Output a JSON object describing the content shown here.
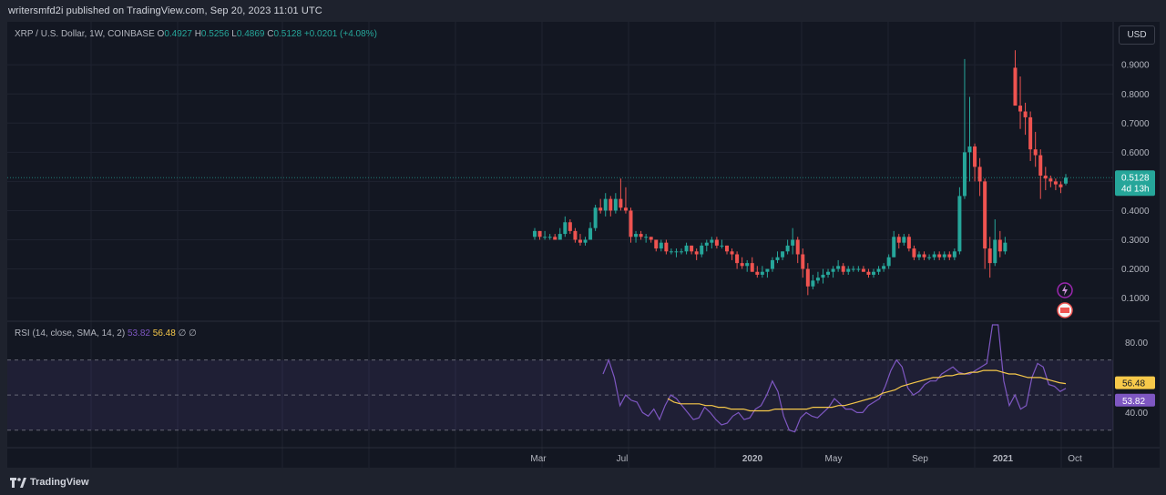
{
  "header": {
    "published": "writersmfd2i published on TradingView.com, Sep 20, 2023 11:01 UTC"
  },
  "legend": {
    "symbol": "XRP / U.S. Dollar, 1W, COINBASE",
    "o_label": "O",
    "o": "0.4927",
    "h_label": "H",
    "h": "0.5256",
    "l_label": "L",
    "l": "0.4869",
    "c_label": "C",
    "c": "0.5128",
    "change": "+0.0201 (+4.08%)"
  },
  "currency_button": "USD",
  "price_axis": {
    "ticks": [
      "0.9000",
      "0.8000",
      "0.7000",
      "0.6000",
      "0.5000",
      "0.4000",
      "0.3000",
      "0.2000",
      "0.1000"
    ],
    "last_price": "0.5128",
    "countdown": "4d 13h"
  },
  "rsi_legend": {
    "label": "RSI (14, close, SMA, 14, 2)",
    "rsi_value": "53.82",
    "sma_value": "56.48",
    "na1": "∅",
    "na2": "∅"
  },
  "rsi_axis": {
    "ticks": [
      "80.00",
      "40.00"
    ],
    "sma_badge": "56.48",
    "rsi_badge": "53.82"
  },
  "time_axis": {
    "labels": [
      "Mar",
      "Jul",
      "2020",
      "May",
      "Sep",
      "2021",
      "Oct"
    ]
  },
  "footer": {
    "brand": "TradingView"
  },
  "colors": {
    "up": "#26a69a",
    "down": "#ef5350",
    "rsi": "#7e57c2",
    "rsi_sma": "#f7c94a",
    "background": "#131722"
  },
  "chart_data": [
    {
      "type": "candlestick",
      "title": "XRP / U.S. Dollar, 1W, COINBASE",
      "ylim": [
        0.03,
        0.96
      ],
      "ohlc": [
        [
          0.31,
          0.34,
          0.3,
          0.33
        ],
        [
          0.33,
          0.33,
          0.3,
          0.31
        ],
        [
          0.31,
          0.33,
          0.3,
          0.31
        ],
        [
          0.31,
          0.32,
          0.3,
          0.31
        ],
        [
          0.31,
          0.32,
          0.3,
          0.3
        ],
        [
          0.3,
          0.34,
          0.3,
          0.32
        ],
        [
          0.32,
          0.38,
          0.31,
          0.36
        ],
        [
          0.36,
          0.37,
          0.32,
          0.33
        ],
        [
          0.33,
          0.34,
          0.29,
          0.3
        ],
        [
          0.3,
          0.32,
          0.28,
          0.29
        ],
        [
          0.29,
          0.31,
          0.28,
          0.3
        ],
        [
          0.3,
          0.36,
          0.3,
          0.34
        ],
        [
          0.34,
          0.42,
          0.33,
          0.41
        ],
        [
          0.41,
          0.44,
          0.39,
          0.4
        ],
        [
          0.4,
          0.46,
          0.38,
          0.44
        ],
        [
          0.44,
          0.45,
          0.38,
          0.4
        ],
        [
          0.4,
          0.46,
          0.39,
          0.44
        ],
        [
          0.44,
          0.51,
          0.4,
          0.41
        ],
        [
          0.41,
          0.48,
          0.39,
          0.4
        ],
        [
          0.4,
          0.41,
          0.29,
          0.31
        ],
        [
          0.31,
          0.33,
          0.29,
          0.32
        ],
        [
          0.32,
          0.33,
          0.3,
          0.31
        ],
        [
          0.31,
          0.32,
          0.29,
          0.31
        ],
        [
          0.31,
          0.31,
          0.29,
          0.3
        ],
        [
          0.3,
          0.3,
          0.26,
          0.27
        ],
        [
          0.27,
          0.3,
          0.26,
          0.29
        ],
        [
          0.29,
          0.3,
          0.25,
          0.26
        ],
        [
          0.26,
          0.27,
          0.25,
          0.26
        ],
        [
          0.26,
          0.27,
          0.24,
          0.26
        ],
        [
          0.26,
          0.27,
          0.25,
          0.26
        ],
        [
          0.26,
          0.29,
          0.25,
          0.28
        ],
        [
          0.28,
          0.28,
          0.25,
          0.26
        ],
        [
          0.26,
          0.27,
          0.23,
          0.25
        ],
        [
          0.25,
          0.29,
          0.24,
          0.28
        ],
        [
          0.28,
          0.3,
          0.26,
          0.29
        ],
        [
          0.29,
          0.31,
          0.27,
          0.3
        ],
        [
          0.3,
          0.31,
          0.27,
          0.28
        ],
        [
          0.28,
          0.3,
          0.27,
          0.28
        ],
        [
          0.28,
          0.28,
          0.25,
          0.26
        ],
        [
          0.26,
          0.27,
          0.23,
          0.25
        ],
        [
          0.25,
          0.26,
          0.2,
          0.22
        ],
        [
          0.22,
          0.24,
          0.2,
          0.21
        ],
        [
          0.21,
          0.23,
          0.19,
          0.22
        ],
        [
          0.22,
          0.24,
          0.19,
          0.19
        ],
        [
          0.19,
          0.21,
          0.17,
          0.18
        ],
        [
          0.18,
          0.21,
          0.17,
          0.19
        ],
        [
          0.19,
          0.2,
          0.17,
          0.2
        ],
        [
          0.2,
          0.24,
          0.19,
          0.23
        ],
        [
          0.23,
          0.26,
          0.22,
          0.24
        ],
        [
          0.24,
          0.26,
          0.23,
          0.26
        ],
        [
          0.26,
          0.3,
          0.25,
          0.28
        ],
        [
          0.28,
          0.34,
          0.25,
          0.3
        ],
        [
          0.3,
          0.31,
          0.22,
          0.25
        ],
        [
          0.25,
          0.27,
          0.17,
          0.2
        ],
        [
          0.2,
          0.22,
          0.11,
          0.14
        ],
        [
          0.14,
          0.18,
          0.13,
          0.16
        ],
        [
          0.16,
          0.19,
          0.15,
          0.17
        ],
        [
          0.17,
          0.2,
          0.15,
          0.18
        ],
        [
          0.18,
          0.2,
          0.17,
          0.19
        ],
        [
          0.19,
          0.21,
          0.17,
          0.2
        ],
        [
          0.2,
          0.23,
          0.19,
          0.21
        ],
        [
          0.21,
          0.22,
          0.18,
          0.19
        ],
        [
          0.19,
          0.21,
          0.18,
          0.2
        ],
        [
          0.2,
          0.21,
          0.19,
          0.2
        ],
        [
          0.2,
          0.21,
          0.19,
          0.2
        ],
        [
          0.2,
          0.21,
          0.19,
          0.19
        ],
        [
          0.19,
          0.2,
          0.17,
          0.18
        ],
        [
          0.18,
          0.2,
          0.17,
          0.19
        ],
        [
          0.19,
          0.21,
          0.18,
          0.2
        ],
        [
          0.2,
          0.22,
          0.19,
          0.21
        ],
        [
          0.21,
          0.25,
          0.2,
          0.24
        ],
        [
          0.24,
          0.33,
          0.24,
          0.31
        ],
        [
          0.31,
          0.32,
          0.27,
          0.29
        ],
        [
          0.29,
          0.32,
          0.28,
          0.31
        ],
        [
          0.31,
          0.32,
          0.26,
          0.27
        ],
        [
          0.27,
          0.28,
          0.23,
          0.24
        ],
        [
          0.24,
          0.26,
          0.23,
          0.25
        ],
        [
          0.25,
          0.26,
          0.23,
          0.24
        ],
        [
          0.24,
          0.25,
          0.23,
          0.24
        ],
        [
          0.24,
          0.26,
          0.23,
          0.25
        ],
        [
          0.25,
          0.26,
          0.23,
          0.24
        ],
        [
          0.24,
          0.26,
          0.23,
          0.25
        ],
        [
          0.25,
          0.26,
          0.23,
          0.24
        ],
        [
          0.24,
          0.27,
          0.23,
          0.26
        ],
        [
          0.26,
          0.48,
          0.25,
          0.45
        ],
        [
          0.45,
          0.92,
          0.44,
          0.6
        ],
        [
          0.6,
          0.79,
          0.5,
          0.62
        ],
        [
          0.62,
          0.63,
          0.5,
          0.55
        ],
        [
          0.55,
          0.58,
          0.45,
          0.5
        ],
        [
          0.5,
          0.51,
          0.2,
          0.27
        ],
        [
          0.27,
          0.31,
          0.17,
          0.22
        ],
        [
          0.22,
          0.37,
          0.21,
          0.3
        ],
        [
          0.3,
          0.33,
          0.24,
          0.26
        ],
        [
          0.26,
          0.31,
          0.25,
          0.29
        ],
        null,
        [
          0.89,
          0.95,
          0.78,
          0.76
        ],
        [
          0.76,
          0.86,
          0.68,
          0.74
        ],
        [
          0.74,
          0.77,
          0.66,
          0.72
        ],
        [
          0.72,
          0.74,
          0.57,
          0.61
        ],
        [
          0.61,
          0.67,
          0.55,
          0.59
        ],
        [
          0.59,
          0.61,
          0.44,
          0.52
        ],
        [
          0.52,
          0.55,
          0.47,
          0.51
        ],
        [
          0.51,
          0.52,
          0.48,
          0.5
        ],
        [
          0.5,
          0.51,
          0.47,
          0.49
        ],
        [
          0.49,
          0.5,
          0.46,
          0.48
        ],
        [
          0.4927,
          0.5256,
          0.4869,
          0.5128
        ]
      ]
    },
    {
      "type": "line",
      "title": "RSI (14, close, SMA, 14, 2)",
      "ylim": [
        20,
        90
      ],
      "overbought": 70,
      "oversold": 30,
      "series": [
        {
          "name": "RSI",
          "color": "#7e57c2",
          "values": [
            62,
            70,
            60,
            44,
            50,
            47,
            46,
            40,
            38,
            42,
            36,
            44,
            50,
            48,
            44,
            40,
            36,
            37,
            43,
            40,
            36,
            33,
            34,
            38,
            40,
            36,
            37,
            42,
            44,
            50,
            58,
            52,
            38,
            30,
            29,
            37,
            40,
            38,
            37,
            40,
            43,
            48,
            45,
            42,
            42,
            40,
            40,
            44,
            46,
            48,
            55,
            64,
            70,
            66,
            54,
            50,
            52,
            56,
            58,
            58,
            62,
            64,
            66,
            63,
            62,
            62,
            64,
            66,
            68,
            90,
            90,
            58,
            44,
            50,
            42,
            44,
            60,
            68,
            66,
            56,
            55,
            52,
            53.82
          ]
        },
        {
          "name": "RSI-based MA",
          "color": "#f7c94a",
          "values": [
            48,
            46,
            45,
            45,
            45,
            45,
            44,
            44,
            43,
            43,
            42,
            42,
            42,
            41,
            41,
            41,
            41,
            42,
            42,
            42,
            42,
            42,
            42,
            43,
            43,
            43,
            43,
            44,
            44,
            45,
            46,
            47,
            48,
            49,
            51,
            52,
            53,
            55,
            56,
            57,
            58,
            59,
            60,
            60,
            61,
            61,
            62,
            62,
            63,
            63,
            64,
            64,
            64,
            63,
            62,
            62,
            61,
            60,
            60,
            60,
            59,
            58,
            57,
            56.48
          ]
        }
      ],
      "y_ticks": [
        "80.00",
        "40.00"
      ]
    }
  ]
}
